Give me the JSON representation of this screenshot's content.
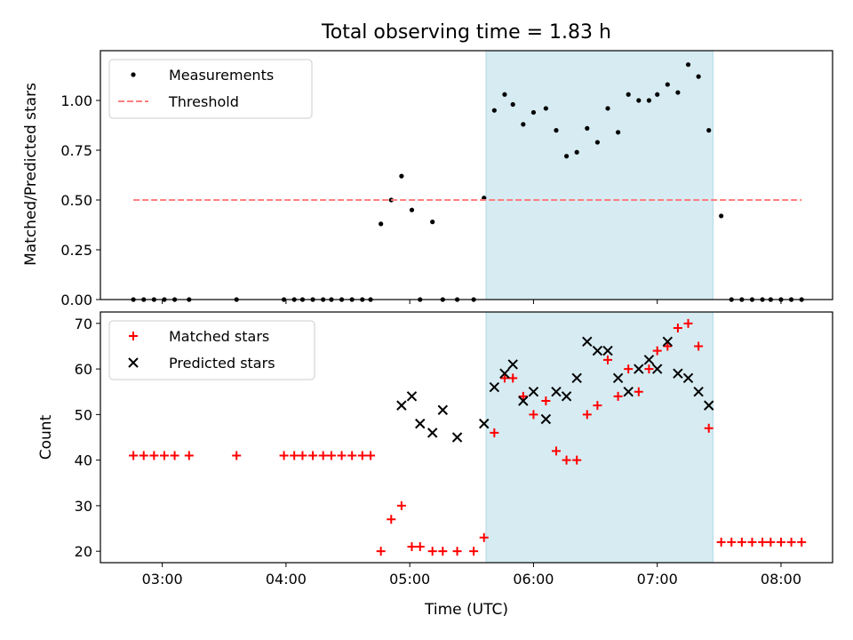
{
  "chart_data": [
    {
      "type": "scatter",
      "title": "Total observing time = 1.83 h",
      "xlabel": "",
      "ylabel": "Matched/Predicted stars",
      "xlim": [
        "02:30",
        "08:25"
      ],
      "ylim": [
        0,
        1.25
      ],
      "yticks": [
        0.0,
        0.25,
        0.5,
        0.75,
        1.0
      ],
      "ytick_labels": [
        "0.00",
        "0.25",
        "0.50",
        "0.75",
        "1.00"
      ],
      "legend_position": "top-left",
      "grid": false,
      "shaded_region": {
        "x": [
          "05:37",
          "07:27"
        ],
        "color": "#add8e6"
      },
      "series": [
        {
          "name": "Measurements",
          "marker": "dot",
          "color": "#000000",
          "x": [
            "02:46",
            "02:51",
            "02:56",
            "03:01",
            "03:06",
            "03:13",
            "03:36",
            "03:59",
            "04:04",
            "04:08",
            "04:13",
            "04:18",
            "04:22",
            "04:27",
            "04:32",
            "04:37",
            "04:41",
            "04:46",
            "04:51",
            "04:56",
            "05:01",
            "05:05",
            "05:11",
            "05:16",
            "05:23",
            "05:31",
            "05:36",
            "05:41",
            "05:46",
            "05:50",
            "05:55",
            "06:00",
            "06:06",
            "06:11",
            "06:16",
            "06:21",
            "06:26",
            "06:31",
            "06:36",
            "06:41",
            "06:46",
            "06:51",
            "06:56",
            "07:00",
            "07:05",
            "07:10",
            "07:15",
            "07:20",
            "07:25",
            "07:31",
            "07:36",
            "07:41",
            "07:46",
            "07:51",
            "07:55",
            "08:00",
            "08:05",
            "08:10"
          ],
          "y": [
            0,
            0,
            0,
            0,
            0,
            0,
            0,
            0,
            0,
            0,
            0,
            0,
            0,
            0,
            0,
            0,
            0,
            0.38,
            0.5,
            0.62,
            0.45,
            0,
            0.39,
            0,
            0,
            0,
            0.51,
            0.95,
            1.03,
            0.98,
            0.88,
            0.94,
            0.96,
            0.85,
            0.72,
            0.74,
            0.86,
            0.79,
            0.96,
            0.84,
            1.03,
            1.0,
            1.0,
            1.03,
            1.08,
            1.04,
            1.18,
            1.12,
            0.85,
            0.42,
            0,
            0,
            0,
            0,
            0,
            0,
            0,
            0
          ]
        },
        {
          "name": "Threshold",
          "style": "dashed",
          "color": "#ff7f7f",
          "x": [
            "02:46",
            "08:10"
          ],
          "y": [
            0.5,
            0.5
          ]
        }
      ]
    },
    {
      "type": "scatter",
      "title": "",
      "xlabel": "Time (UTC)",
      "ylabel": "Count",
      "xlim": [
        "02:30",
        "08:25"
      ],
      "ylim": [
        17.5,
        72.5
      ],
      "yticks": [
        20,
        30,
        40,
        50,
        60,
        70
      ],
      "xticks": [
        "03:00",
        "04:00",
        "05:00",
        "06:00",
        "07:00",
        "08:00"
      ],
      "legend_position": "top-left",
      "grid": false,
      "shaded_region": {
        "x": [
          "05:37",
          "07:27"
        ],
        "color": "#add8e6"
      },
      "series": [
        {
          "name": "Matched stars",
          "marker": "plus",
          "color": "#ff0000",
          "x": [
            "02:46",
            "02:51",
            "02:56",
            "03:01",
            "03:06",
            "03:13",
            "03:36",
            "03:59",
            "04:04",
            "04:08",
            "04:13",
            "04:18",
            "04:22",
            "04:27",
            "04:32",
            "04:37",
            "04:41",
            "04:46",
            "04:51",
            "04:56",
            "05:01",
            "05:05",
            "05:11",
            "05:16",
            "05:23",
            "05:31",
            "05:36",
            "05:41",
            "05:46",
            "05:50",
            "05:55",
            "06:00",
            "06:06",
            "06:11",
            "06:16",
            "06:21",
            "06:26",
            "06:31",
            "06:36",
            "06:41",
            "06:46",
            "06:51",
            "06:56",
            "07:00",
            "07:05",
            "07:10",
            "07:15",
            "07:20",
            "07:25",
            "07:31",
            "07:36",
            "07:41",
            "07:46",
            "07:51",
            "07:55",
            "08:00",
            "08:05",
            "08:10"
          ],
          "y": [
            41,
            41,
            41,
            41,
            41,
            41,
            41,
            41,
            41,
            41,
            41,
            41,
            41,
            41,
            41,
            41,
            41,
            20,
            27,
            30,
            21,
            21,
            20,
            20,
            20,
            20,
            23,
            46,
            58,
            58,
            54,
            50,
            53,
            42,
            40,
            40,
            50,
            52,
            62,
            54,
            60,
            55,
            60,
            64,
            65,
            69,
            70,
            65,
            47,
            22,
            22,
            22,
            22,
            22,
            22,
            22,
            22,
            22
          ]
        },
        {
          "name": "Predicted stars",
          "marker": "x",
          "color": "#000000",
          "x": [
            "04:56",
            "05:01",
            "05:05",
            "05:11",
            "05:16",
            "05:23",
            "05:36",
            "05:41",
            "05:46",
            "05:50",
            "05:55",
            "06:00",
            "06:06",
            "06:11",
            "06:16",
            "06:21",
            "06:26",
            "06:31",
            "06:36",
            "06:41",
            "06:46",
            "06:51",
            "06:56",
            "07:00",
            "07:05",
            "07:10",
            "07:15",
            "07:20",
            "07:25",
            "07:31"
          ],
          "y": [
            52,
            54,
            48,
            46,
            51,
            45,
            48,
            56,
            59,
            61,
            53,
            55,
            49,
            55,
            54,
            58,
            66,
            64,
            64,
            58,
            55,
            60,
            62,
            60,
            66,
            59,
            58,
            55,
            52,
            null
          ]
        }
      ]
    }
  ]
}
